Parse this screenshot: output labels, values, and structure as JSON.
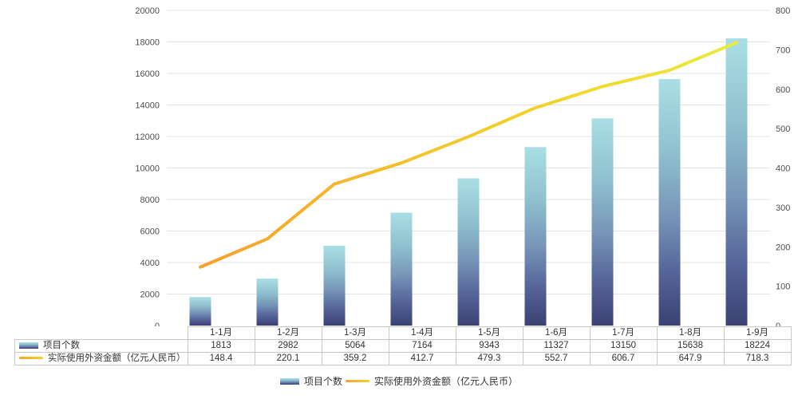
{
  "chart_data": {
    "type": "bar",
    "subtype": "combo-bar-line-dual-axis",
    "title": "",
    "xlabel": "",
    "ylabel": "",
    "categories": [
      "1-1月",
      "1-2月",
      "1-3月",
      "1-4月",
      "1-5月",
      "1-6月",
      "1-7月",
      "1-8月",
      "1-9月"
    ],
    "series": [
      {
        "name": "项目个数",
        "type": "bar",
        "yaxis": "left",
        "values": [
          1813,
          2982,
          5064,
          7164,
          9343,
          11327,
          13150,
          15638,
          18224
        ]
      },
      {
        "name": "实际使用外资金额（亿元人民币）",
        "type": "line",
        "yaxis": "right",
        "values": [
          148.4,
          220.1,
          359.2,
          412.7,
          479.3,
          552.7,
          606.7,
          647.9,
          718.3
        ]
      }
    ],
    "left_axis": {
      "min": 0,
      "max": 20000,
      "step": 2000,
      "ticks": [
        0,
        2000,
        4000,
        6000,
        8000,
        10000,
        12000,
        14000,
        16000,
        18000,
        20000
      ]
    },
    "right_axis": {
      "min": 0,
      "max": 800,
      "step": 100,
      "ticks": [
        0,
        100,
        200,
        300,
        400,
        500,
        600,
        700,
        800
      ]
    },
    "grid": true,
    "legend_position": "bottom",
    "colors": {
      "bar_gradient": [
        [
          "0%",
          "#A9DFE4"
        ],
        [
          "30%",
          "#8FC0CF"
        ],
        [
          "55%",
          "#7796B8"
        ],
        [
          "78%",
          "#56659A"
        ],
        [
          "100%",
          "#3B4173"
        ]
      ],
      "line_gradient": [
        [
          "0%",
          "#F7A12C"
        ],
        [
          "40%",
          "#F4C32A"
        ],
        [
          "70%",
          "#F2D72A"
        ],
        [
          "100%",
          "#E9EC3D"
        ]
      ],
      "grid": "#E3E3E3",
      "axis_text": "#4D4D4D",
      "table_border": "#C9C9C9",
      "table_text": "#333333"
    }
  },
  "legend": {
    "items": [
      {
        "label": "项目个数",
        "swatch": "bar"
      },
      {
        "label": "实际使用外资金额（亿元人民币）",
        "swatch": "line"
      }
    ]
  },
  "table": {
    "corner_label": ""
  }
}
